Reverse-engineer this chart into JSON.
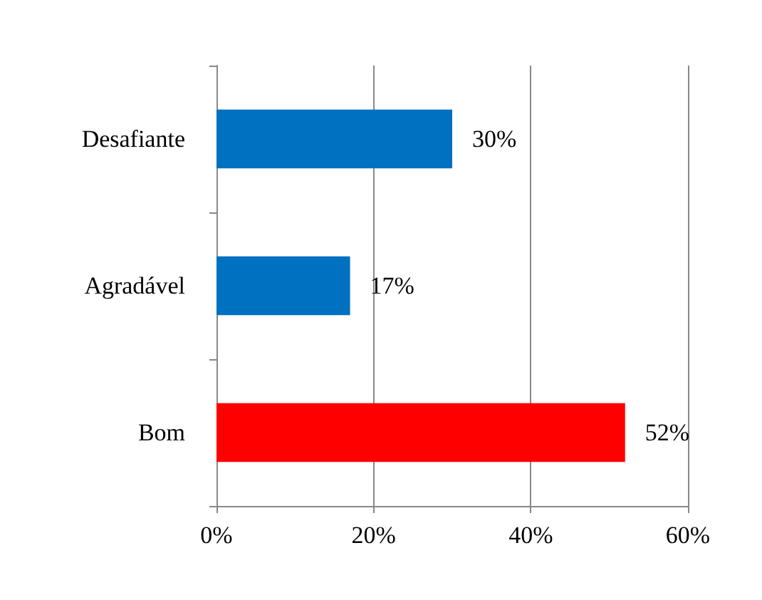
{
  "chart_data": {
    "type": "bar",
    "orientation": "horizontal",
    "categories": [
      "Desafiante",
      "Agradável",
      "Bom"
    ],
    "values": [
      30,
      17,
      52
    ],
    "colors": [
      "#0070c0",
      "#0070c0",
      "#ff0000"
    ],
    "value_labels": [
      "30%",
      "17%",
      "52%"
    ],
    "xlim": [
      0,
      60
    ],
    "xticks": [
      {
        "value": 0,
        "label": "0%"
      },
      {
        "value": 20,
        "label": "20%"
      },
      {
        "value": 40,
        "label": "40%"
      },
      {
        "value": 60,
        "label": "60%"
      }
    ],
    "grid": "x"
  }
}
